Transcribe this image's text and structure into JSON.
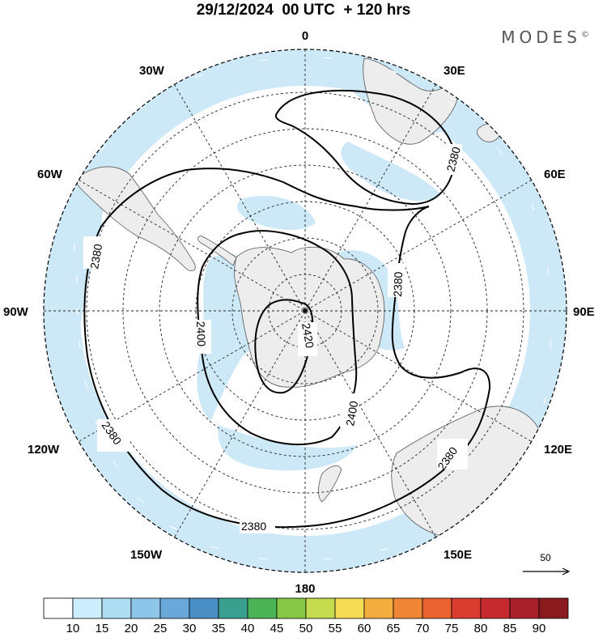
{
  "header": {
    "title": "29/12/2024  00 UTC  + 120 hrs",
    "brand": "MODES",
    "brand_mark": "©"
  },
  "map": {
    "projection": "south polar stereographic",
    "ocean_color": "#ffffff",
    "land_color": "#ededed",
    "shade_color": "#cde9f8",
    "longitude_labels": {
      "top": "0",
      "30e": "30E",
      "60e": "60E",
      "90e": "90E",
      "120e": "120E",
      "150e": "150E",
      "bottom": "180",
      "150w": "150W",
      "120w": "120W",
      "90w": "90W",
      "60w": "60W",
      "30w": "30W"
    },
    "contour_labels": [
      "2380",
      "2380",
      "2380",
      "2380",
      "2380",
      "2400",
      "2400",
      "2420"
    ],
    "reference_vector": {
      "value": "50"
    }
  },
  "colorbar": {
    "ticks": [
      "10",
      "15",
      "20",
      "25",
      "30",
      "35",
      "40",
      "45",
      "50",
      "55",
      "60",
      "65",
      "70",
      "75",
      "80",
      "85",
      "90"
    ],
    "colors": [
      "#ffffff",
      "#cdeefc",
      "#aedcf3",
      "#8ec6ea",
      "#6aa8da",
      "#4a8ec6",
      "#3a9f8f",
      "#4bb457",
      "#86c846",
      "#c4dc4e",
      "#f6dc55",
      "#f3ad3f",
      "#ef8734",
      "#e9622f",
      "#dc3b30",
      "#c72a2e",
      "#a7202a",
      "#8a1a1e"
    ]
  }
}
